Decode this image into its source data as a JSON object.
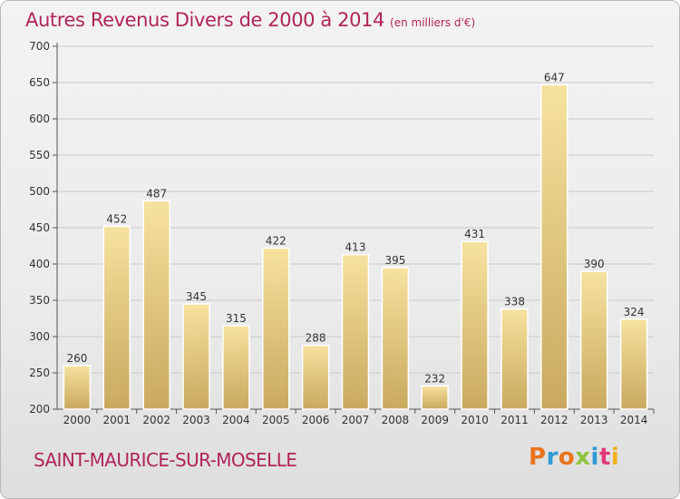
{
  "header": {
    "title": "Autres Revenus Divers de 2000 à 2014",
    "unit": "(en milliers d'€)"
  },
  "footer": {
    "city": "SAINT-MAURICE-SUR-MOSELLE",
    "logo_text": "Proxiti",
    "logo_colors": [
      "#e8741c",
      "#2e9ad6",
      "#e8741c",
      "#8cc43c",
      "#2e9ad6",
      "#e03a7a",
      "#f2b01e"
    ]
  },
  "colors": {
    "title": "#b0245a",
    "bar_light": "#f6e29f",
    "bar_dark": "#c9a95e",
    "axis": "#555555",
    "grid": "#c9c9c9"
  },
  "chart_data": {
    "type": "bar",
    "title": "Autres Revenus Divers de 2000 à 2014",
    "subtitle": "(en milliers d'€)",
    "categories": [
      "2000",
      "2001",
      "2002",
      "2003",
      "2004",
      "2005",
      "2006",
      "2007",
      "2008",
      "2009",
      "2010",
      "2011",
      "2012",
      "2013",
      "2014"
    ],
    "values": [
      260,
      452,
      487,
      345,
      315,
      422,
      288,
      413,
      395,
      232,
      431,
      338,
      647,
      390,
      324
    ],
    "ylim": [
      200,
      700
    ],
    "yticks": [
      200,
      250,
      300,
      350,
      400,
      450,
      500,
      550,
      600,
      650,
      700
    ],
    "grid": true,
    "legend": "none"
  }
}
